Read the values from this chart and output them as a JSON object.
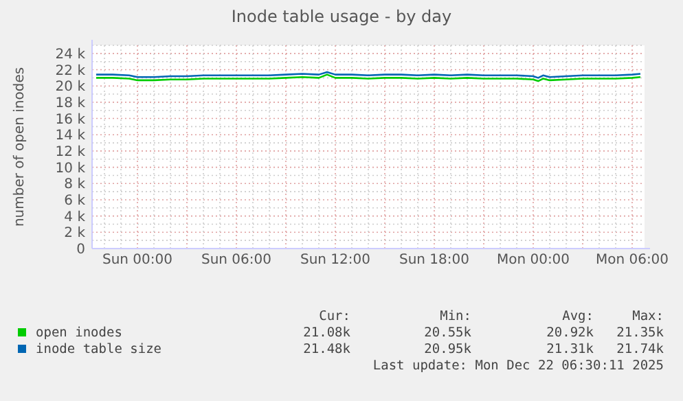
{
  "chart_data": {
    "type": "line",
    "title": "Inode table usage - by day",
    "ylabel": "number of open inodes",
    "x": [
      "2025-12-20T21:30",
      "2025-12-20T22:30",
      "2025-12-20T23:30",
      "2025-12-21T00:00",
      "2025-12-21T01:00",
      "2025-12-21T02:00",
      "2025-12-21T03:00",
      "2025-12-21T04:00",
      "2025-12-21T05:00",
      "2025-12-21T06:00",
      "2025-12-21T07:00",
      "2025-12-21T08:00",
      "2025-12-21T09:00",
      "2025-12-21T10:00",
      "2025-12-21T11:00",
      "2025-12-21T11:30",
      "2025-12-21T12:00",
      "2025-12-21T13:00",
      "2025-12-21T14:00",
      "2025-12-21T15:00",
      "2025-12-21T16:00",
      "2025-12-21T17:00",
      "2025-12-21T18:00",
      "2025-12-21T19:00",
      "2025-12-21T20:00",
      "2025-12-21T21:00",
      "2025-12-21T22:00",
      "2025-12-21T23:00",
      "2025-12-22T00:00",
      "2025-12-22T00:18",
      "2025-12-22T00:36",
      "2025-12-22T01:00",
      "2025-12-22T02:00",
      "2025-12-22T03:00",
      "2025-12-22T04:00",
      "2025-12-22T05:00",
      "2025-12-22T06:00",
      "2025-12-22T06:30"
    ],
    "series": [
      {
        "name": "open inodes",
        "color": "#00cc00",
        "values": [
          21000,
          21000,
          20900,
          20700,
          20700,
          20800,
          20800,
          20900,
          20900,
          20900,
          20900,
          20900,
          21000,
          21100,
          21000,
          21400,
          21000,
          21000,
          20900,
          21000,
          21000,
          20900,
          21000,
          20900,
          21000,
          20900,
          20900,
          20900,
          20800,
          20600,
          20900,
          20700,
          20800,
          20900,
          20900,
          20900,
          21000,
          21100
        ]
      },
      {
        "name": "inode table size",
        "color": "#0066b3",
        "values": [
          21400,
          21400,
          21300,
          21100,
          21100,
          21200,
          21200,
          21300,
          21300,
          21300,
          21300,
          21300,
          21400,
          21500,
          21400,
          21700,
          21400,
          21400,
          21300,
          21400,
          21400,
          21300,
          21400,
          21300,
          21400,
          21300,
          21300,
          21300,
          21200,
          21000,
          21300,
          21100,
          21200,
          21300,
          21300,
          21300,
          21400,
          21500
        ]
      }
    ],
    "xlim": [
      "2025-12-20T21:15",
      "2025-12-22T06:45"
    ],
    "xticks": [
      {
        "value": "2025-12-20T22:00",
        "label": null
      },
      {
        "value": "2025-12-20T23:00",
        "label": null
      },
      {
        "value": "2025-12-21T00:00",
        "label": "Sun 00:00"
      },
      {
        "value": "2025-12-21T01:00",
        "label": null
      },
      {
        "value": "2025-12-21T02:00",
        "label": null
      },
      {
        "value": "2025-12-21T03:00",
        "label": null
      },
      {
        "value": "2025-12-21T04:00",
        "label": null
      },
      {
        "value": "2025-12-21T05:00",
        "label": null
      },
      {
        "value": "2025-12-21T06:00",
        "label": "Sun 06:00"
      },
      {
        "value": "2025-12-21T07:00",
        "label": null
      },
      {
        "value": "2025-12-21T08:00",
        "label": null
      },
      {
        "value": "2025-12-21T09:00",
        "label": null
      },
      {
        "value": "2025-12-21T10:00",
        "label": null
      },
      {
        "value": "2025-12-21T11:00",
        "label": null
      },
      {
        "value": "2025-12-21T12:00",
        "label": "Sun 12:00"
      },
      {
        "value": "2025-12-21T13:00",
        "label": null
      },
      {
        "value": "2025-12-21T14:00",
        "label": null
      },
      {
        "value": "2025-12-21T15:00",
        "label": null
      },
      {
        "value": "2025-12-21T16:00",
        "label": null
      },
      {
        "value": "2025-12-21T17:00",
        "label": null
      },
      {
        "value": "2025-12-21T18:00",
        "label": "Sun 18:00"
      },
      {
        "value": "2025-12-21T19:00",
        "label": null
      },
      {
        "value": "2025-12-21T20:00",
        "label": null
      },
      {
        "value": "2025-12-21T21:00",
        "label": null
      },
      {
        "value": "2025-12-21T22:00",
        "label": null
      },
      {
        "value": "2025-12-21T23:00",
        "label": null
      },
      {
        "value": "2025-12-22T00:00",
        "label": "Mon 00:00"
      },
      {
        "value": "2025-12-22T01:00",
        "label": null
      },
      {
        "value": "2025-12-22T02:00",
        "label": null
      },
      {
        "value": "2025-12-22T03:00",
        "label": null
      },
      {
        "value": "2025-12-22T04:00",
        "label": null
      },
      {
        "value": "2025-12-22T05:00",
        "label": null
      },
      {
        "value": "2025-12-22T06:00",
        "label": "Mon 06:00"
      }
    ],
    "ylim": [
      0,
      25000
    ],
    "yticks": [
      {
        "value": 0,
        "label": "0"
      },
      {
        "value": 1000,
        "label": null
      },
      {
        "value": 2000,
        "label": "2 k"
      },
      {
        "value": 3000,
        "label": null
      },
      {
        "value": 4000,
        "label": "4 k"
      },
      {
        "value": 5000,
        "label": null
      },
      {
        "value": 6000,
        "label": "6 k"
      },
      {
        "value": 7000,
        "label": null
      },
      {
        "value": 8000,
        "label": "8 k"
      },
      {
        "value": 9000,
        "label": null
      },
      {
        "value": 10000,
        "label": "10 k"
      },
      {
        "value": 11000,
        "label": null
      },
      {
        "value": 12000,
        "label": "12 k"
      },
      {
        "value": 13000,
        "label": null
      },
      {
        "value": 14000,
        "label": "14 k"
      },
      {
        "value": 15000,
        "label": null
      },
      {
        "value": 16000,
        "label": "16 k"
      },
      {
        "value": 17000,
        "label": null
      },
      {
        "value": 18000,
        "label": "18 k"
      },
      {
        "value": 19000,
        "label": null
      },
      {
        "value": 20000,
        "label": "20 k"
      },
      {
        "value": 21000,
        "label": null
      },
      {
        "value": 22000,
        "label": "22 k"
      },
      {
        "value": 23000,
        "label": null
      },
      {
        "value": 24000,
        "label": "24 k"
      },
      {
        "value": 25000,
        "label": null
      }
    ],
    "grid": true,
    "legend": "bottom",
    "annotations": [
      "Cur:",
      "Min:",
      "Avg:",
      "Max:",
      "21.08k",
      "20.55k",
      "20.92k",
      "21.35k",
      "21.48k",
      "20.95k",
      "21.31k",
      "21.74k",
      "Last update: Mon Dec 22 06:30:11 2025"
    ]
  }
}
